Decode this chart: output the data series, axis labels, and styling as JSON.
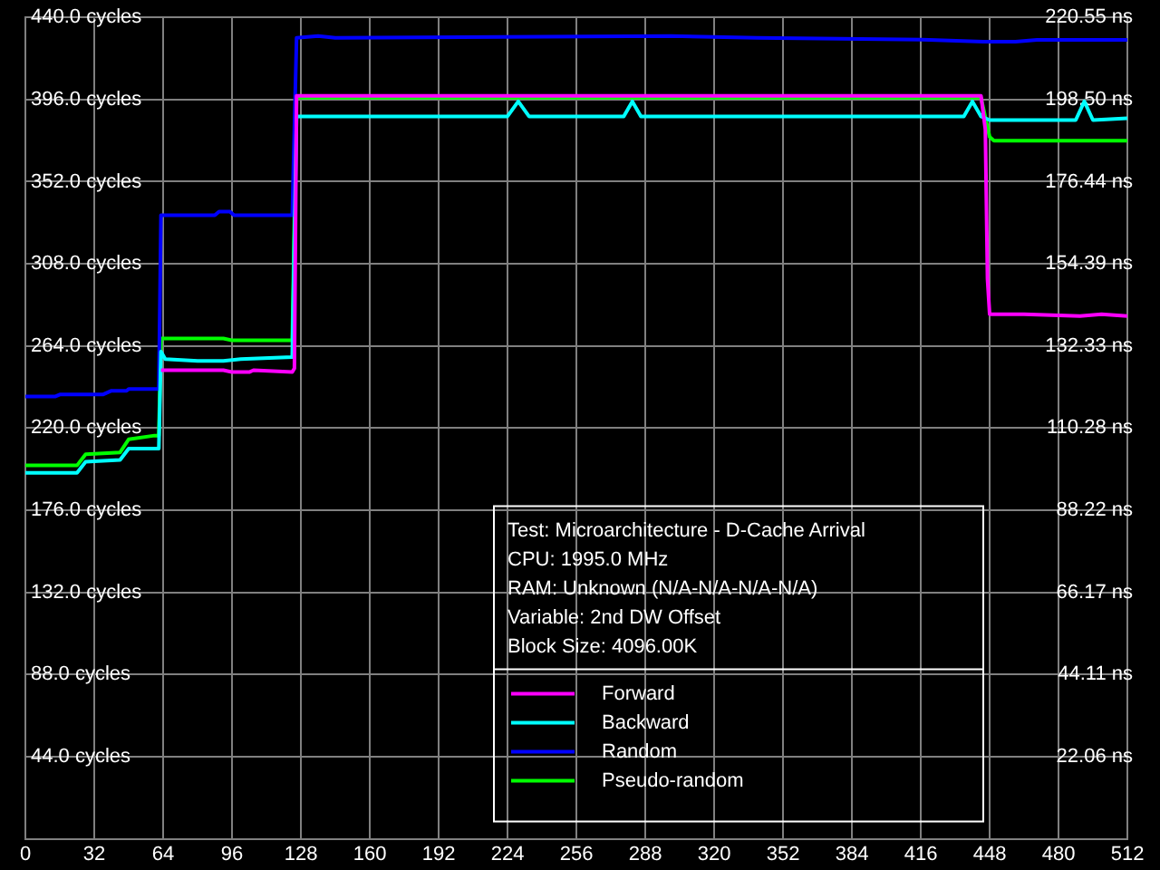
{
  "chart_data": {
    "type": "line",
    "annotations": [
      "Test: Microarchitecture - D-Cache Arrival",
      "CPU: 1995.0 MHz",
      "RAM: Unknown (N/A-N/A-N/A-N/A)",
      "Variable: 2nd DW Offset",
      "Block Size: 4096.00K"
    ],
    "xlim": [
      0,
      512
    ],
    "xticks": [
      0,
      32,
      64,
      96,
      128,
      160,
      192,
      224,
      256,
      288,
      320,
      352,
      384,
      416,
      448,
      480,
      512
    ],
    "ylim": [
      0,
      440
    ],
    "yticks": [
      {
        "value": 44,
        "label": "44.0 cycles"
      },
      {
        "value": 88,
        "label": "88.0 cycles"
      },
      {
        "value": 132,
        "label": "132.0 cycles"
      },
      {
        "value": 176,
        "label": "176.0 cycles"
      },
      {
        "value": 220,
        "label": "220.0 cycles"
      },
      {
        "value": 264,
        "label": "264.0 cycles"
      },
      {
        "value": 308,
        "label": "308.0 cycles"
      },
      {
        "value": 352,
        "label": "352.0 cycles"
      },
      {
        "value": 396,
        "label": "396.0 cycles"
      },
      {
        "value": 440,
        "label": "440.0 cycles"
      }
    ],
    "y2lim": [
      0,
      220.55
    ],
    "y2ticks": [
      {
        "value": 22.06,
        "label": "22.06 ns"
      },
      {
        "value": 44.11,
        "label": "44.11 ns"
      },
      {
        "value": 66.17,
        "label": "66.17 ns"
      },
      {
        "value": 88.22,
        "label": "88.22 ns"
      },
      {
        "value": 110.28,
        "label": "110.28 ns"
      },
      {
        "value": 132.33,
        "label": "132.33 ns"
      },
      {
        "value": 154.39,
        "label": "154.39 ns"
      },
      {
        "value": 176.44,
        "label": "176.44 ns"
      },
      {
        "value": 198.5,
        "label": "198.50 ns"
      },
      {
        "value": 220.55,
        "label": "220.55 ns"
      }
    ],
    "grid": true,
    "legend": "bottom right",
    "marker": "none",
    "line_style": "solid",
    "series": [
      {
        "name": "Forward",
        "color": "#ff00ff",
        "x": [
          63,
          92,
          96,
          104,
          106,
          124,
          125,
          126,
          444,
          446,
          447,
          448,
          464,
          490,
          500,
          512
        ],
        "values": [
          251,
          251,
          250,
          250,
          251,
          250,
          252,
          398,
          398,
          380,
          300,
          281,
          281,
          280,
          281,
          280
        ]
      },
      {
        "name": "Backward",
        "color": "#00ffff",
        "x": [
          0,
          24,
          28,
          44,
          48,
          62,
          63,
          65,
          80,
          92,
          100,
          124,
          126,
          224,
          229,
          234,
          278,
          282,
          286,
          436,
          440,
          444,
          448,
          488,
          492,
          496,
          512
        ],
        "values": [
          196,
          196,
          202,
          203,
          209,
          209,
          261,
          257,
          256,
          256,
          257,
          258,
          387,
          387,
          395,
          387,
          387,
          395,
          387,
          387,
          395,
          387,
          385,
          385,
          395,
          385,
          386
        ]
      },
      {
        "name": "Random",
        "color": "#0000ff",
        "x": [
          0,
          14,
          16,
          36,
          40,
          47,
          48,
          62,
          63,
          88,
          90,
          95,
          97,
          124,
          126,
          136,
          144,
          300,
          340,
          420,
          445,
          460,
          470,
          500,
          512
        ],
        "values": [
          237,
          237,
          238,
          238,
          240,
          240,
          241,
          241,
          334,
          334,
          336,
          336,
          334,
          334,
          429,
          430,
          429,
          430,
          429,
          428,
          427,
          427,
          428,
          428,
          428
        ]
      },
      {
        "name": "Pseudo-random",
        "color": "#00ff00",
        "x": [
          0,
          24,
          28,
          44,
          48,
          60,
          62,
          63,
          92,
          96,
          124,
          126,
          444,
          448,
          450,
          512
        ],
        "values": [
          200,
          200,
          206,
          207,
          214,
          216,
          216,
          268,
          268,
          267,
          267,
          397,
          397,
          376,
          374,
          374
        ]
      }
    ]
  }
}
